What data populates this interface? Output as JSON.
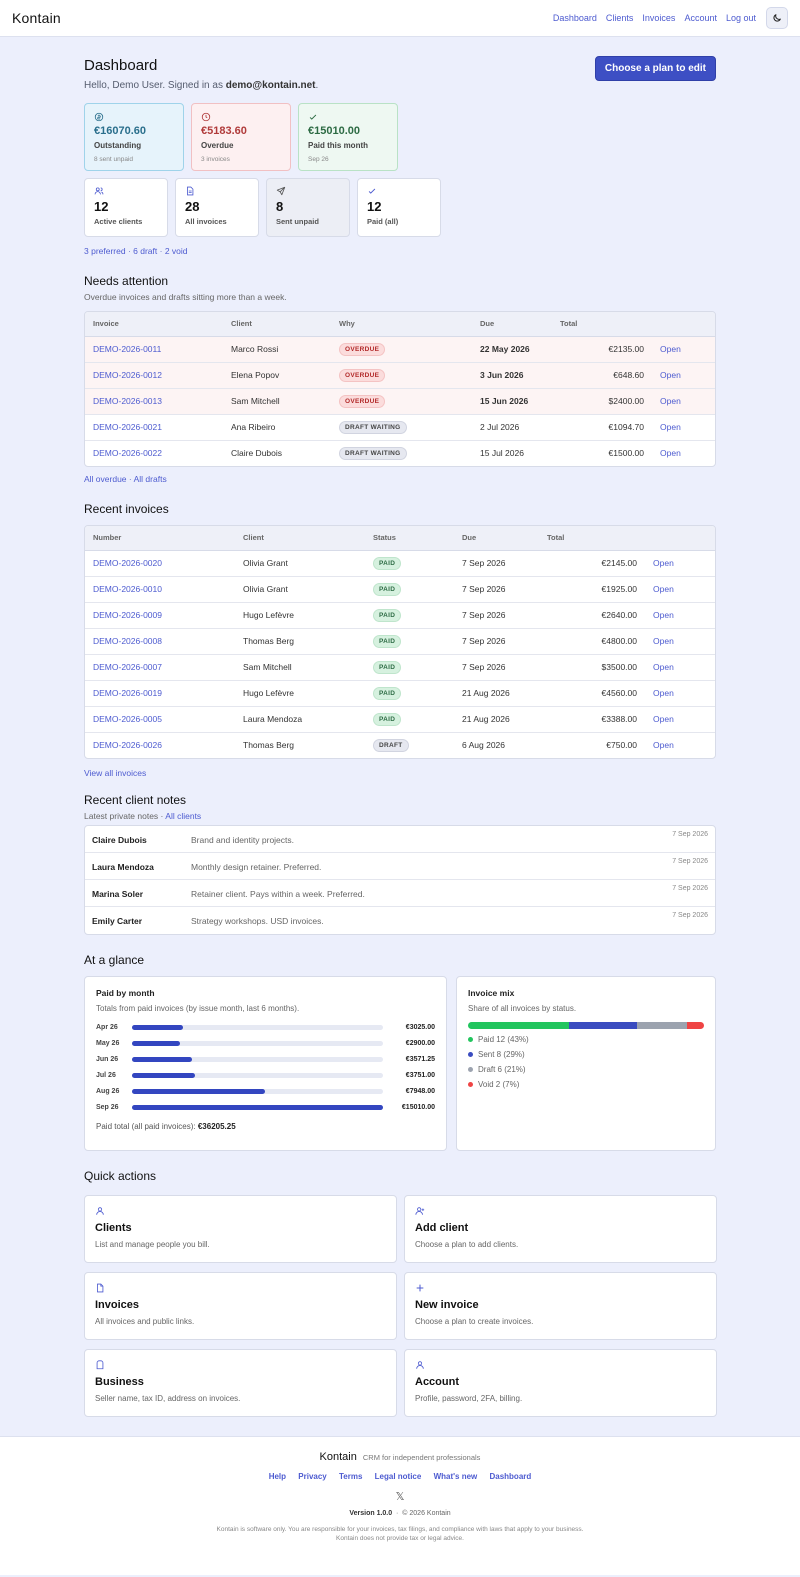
{
  "brand": "Kontain",
  "nav": {
    "links": [
      "Dashboard",
      "Clients",
      "Invoices",
      "Account",
      "Log out"
    ]
  },
  "header": {
    "title": "Dashboard",
    "greeting": "Hello, Demo User. Signed in as",
    "email": "demo@kontain.net",
    "plan_button": "Choose a plan to edit"
  },
  "money_cards": [
    {
      "amount": "€16070.60",
      "label": "Outstanding",
      "sub": "8 sent unpaid",
      "tone": "blue",
      "icon": "currency-icon"
    },
    {
      "amount": "€5183.60",
      "label": "Overdue",
      "sub": "3 invoices",
      "tone": "red",
      "icon": "clock-icon"
    },
    {
      "amount": "€15010.00",
      "label": "Paid this month",
      "sub": "Sep 26",
      "tone": "green",
      "icon": "check-icon"
    }
  ],
  "count_cards": [
    {
      "num": "12",
      "label": "Active clients",
      "icon": "users-icon"
    },
    {
      "num": "28",
      "label": "All invoices",
      "icon": "document-icon"
    },
    {
      "num": "8",
      "label": "Sent unpaid",
      "icon": "send-icon"
    },
    {
      "num": "12",
      "label": "Paid (all)",
      "icon": "check-icon"
    }
  ],
  "meta_links": [
    "3 preferred",
    "6 draft",
    "2 void"
  ],
  "attention": {
    "title": "Needs attention",
    "subtitle": "Overdue invoices and drafts sitting more than a week.",
    "headers": [
      "Invoice",
      "Client",
      "Why",
      "Due",
      "Total"
    ],
    "rows": [
      {
        "invoice": "DEMO-2026-0011",
        "client": "Marco Rossi",
        "why": "OVERDUE",
        "due": "22 May 2026",
        "total": "€2135.00",
        "action": "Open"
      },
      {
        "invoice": "DEMO-2026-0012",
        "client": "Elena Popov",
        "why": "OVERDUE",
        "due": "3 Jun 2026",
        "total": "€648.60",
        "action": "Open"
      },
      {
        "invoice": "DEMO-2026-0013",
        "client": "Sam Mitchell",
        "why": "OVERDUE",
        "due": "15 Jun 2026",
        "total": "$2400.00",
        "action": "Open"
      },
      {
        "invoice": "DEMO-2026-0021",
        "client": "Ana Ribeiro",
        "why": "DRAFT WAITING",
        "due": "2 Jul 2026",
        "total": "€1094.70",
        "action": "Open"
      },
      {
        "invoice": "DEMO-2026-0022",
        "client": "Claire Dubois",
        "why": "DRAFT WAITING",
        "due": "15 Jul 2026",
        "total": "€1500.00",
        "action": "Open"
      }
    ],
    "links": [
      "All overdue",
      "All drafts"
    ]
  },
  "recent": {
    "title": "Recent invoices",
    "headers": [
      "Number",
      "Client",
      "Status",
      "Due",
      "Total"
    ],
    "rows": [
      {
        "number": "DEMO-2026-0020",
        "client": "Olivia Grant",
        "status": "PAID",
        "due": "7 Sep 2026",
        "total": "€2145.00",
        "action": "Open"
      },
      {
        "number": "DEMO-2026-0010",
        "client": "Olivia Grant",
        "status": "PAID",
        "due": "7 Sep 2026",
        "total": "€1925.00",
        "action": "Open"
      },
      {
        "number": "DEMO-2026-0009",
        "client": "Hugo Lefèvre",
        "status": "PAID",
        "due": "7 Sep 2026",
        "total": "€2640.00",
        "action": "Open"
      },
      {
        "number": "DEMO-2026-0008",
        "client": "Thomas Berg",
        "status": "PAID",
        "due": "7 Sep 2026",
        "total": "€4800.00",
        "action": "Open"
      },
      {
        "number": "DEMO-2026-0007",
        "client": "Sam Mitchell",
        "status": "PAID",
        "due": "7 Sep 2026",
        "total": "$3500.00",
        "action": "Open"
      },
      {
        "number": "DEMO-2026-0019",
        "client": "Hugo Lefèvre",
        "status": "PAID",
        "due": "21 Aug 2026",
        "total": "€4560.00",
        "action": "Open"
      },
      {
        "number": "DEMO-2026-0005",
        "client": "Laura Mendoza",
        "status": "PAID",
        "due": "21 Aug 2026",
        "total": "€3388.00",
        "action": "Open"
      },
      {
        "number": "DEMO-2026-0026",
        "client": "Thomas Berg",
        "status": "DRAFT",
        "due": "6 Aug 2026",
        "total": "€750.00",
        "action": "Open"
      }
    ],
    "view_all": "View all invoices"
  },
  "notes": {
    "title": "Recent client notes",
    "subtitle": "Latest private notes",
    "all_link": "All clients",
    "rows": [
      {
        "name": "Claire Dubois",
        "text": "Brand and identity projects.",
        "date": "7 Sep 2026"
      },
      {
        "name": "Laura Mendoza",
        "text": "Monthly design retainer. Preferred.",
        "date": "7 Sep 2026"
      },
      {
        "name": "Marina Soler",
        "text": "Retainer client. Pays within a week. Preferred.",
        "date": "7 Sep 2026"
      },
      {
        "name": "Emily Carter",
        "text": "Strategy workshops. USD invoices.",
        "date": "7 Sep 2026"
      }
    ]
  },
  "glance": {
    "title": "At a glance",
    "paid_by_month": {
      "title": "Paid by month",
      "subtitle": "Totals from paid invoices (by issue month, last 6 months).",
      "total_label": "Paid total (all paid invoices):",
      "total_value": "€36205.25"
    },
    "mix": {
      "title": "Invoice mix",
      "subtitle": "Share of all invoices by status."
    }
  },
  "chart_data": [
    {
      "type": "bar",
      "title": "Paid by month",
      "categories": [
        "Apr 26",
        "May 26",
        "Jun 26",
        "Jul 26",
        "Aug 26",
        "Sep 26"
      ],
      "values": [
        3025.0,
        2900.0,
        3571.25,
        3751.0,
        7948.0,
        15010.0
      ],
      "value_labels": [
        "€3025.00",
        "€2900.00",
        "€3571.25",
        "€3751.00",
        "€7948.00",
        "€15010.00"
      ],
      "orientation": "horizontal",
      "color": "#3346c0"
    },
    {
      "type": "bar",
      "title": "Invoice mix",
      "stacked": true,
      "series": [
        {
          "name": "Paid",
          "count": 12,
          "percent": 43,
          "color": "#22c55e",
          "label": "Paid 12 (43%)"
        },
        {
          "name": "Sent",
          "count": 8,
          "percent": 29,
          "color": "#3a4cc0",
          "label": "Sent 8 (29%)"
        },
        {
          "name": "Draft",
          "count": 6,
          "percent": 21,
          "color": "#9ca3af",
          "label": "Draft 6 (21%)"
        },
        {
          "name": "Void",
          "count": 2,
          "percent": 7,
          "color": "#ef4444",
          "label": "Void 2 (7%)"
        }
      ]
    }
  ],
  "quick_actions": {
    "title": "Quick actions",
    "items": [
      {
        "title": "Clients",
        "desc": "List and manage people you bill.",
        "icon": "user-icon"
      },
      {
        "title": "Add client",
        "desc": "Choose a plan to add clients.",
        "icon": "user-plus-icon"
      },
      {
        "title": "Invoices",
        "desc": "All invoices and public links.",
        "icon": "document-icon"
      },
      {
        "title": "New invoice",
        "desc": "Choose a plan to create invoices.",
        "icon": "plus-icon"
      },
      {
        "title": "Business",
        "desc": "Seller name, tax ID, address on invoices.",
        "icon": "building-icon"
      },
      {
        "title": "Account",
        "desc": "Profile, password, 2FA, billing.",
        "icon": "user-icon"
      }
    ]
  },
  "footer": {
    "brand": "Kontain",
    "tagline": "CRM for independent professionals",
    "links": [
      "Help",
      "Privacy",
      "Terms",
      "Legal notice",
      "What's new",
      "Dashboard"
    ],
    "social": "𝕏",
    "version": "Version 1.0.0",
    "copyright": "© 2026 Kontain",
    "legal": "Kontain is software only. You are responsible for your invoices, tax filings, and compliance with laws that apply to your business. Kontain does not provide tax or legal advice."
  },
  "colors": {
    "accent": "#3d4fc4",
    "link": "#4d5bd0",
    "background": "#eceffc"
  }
}
